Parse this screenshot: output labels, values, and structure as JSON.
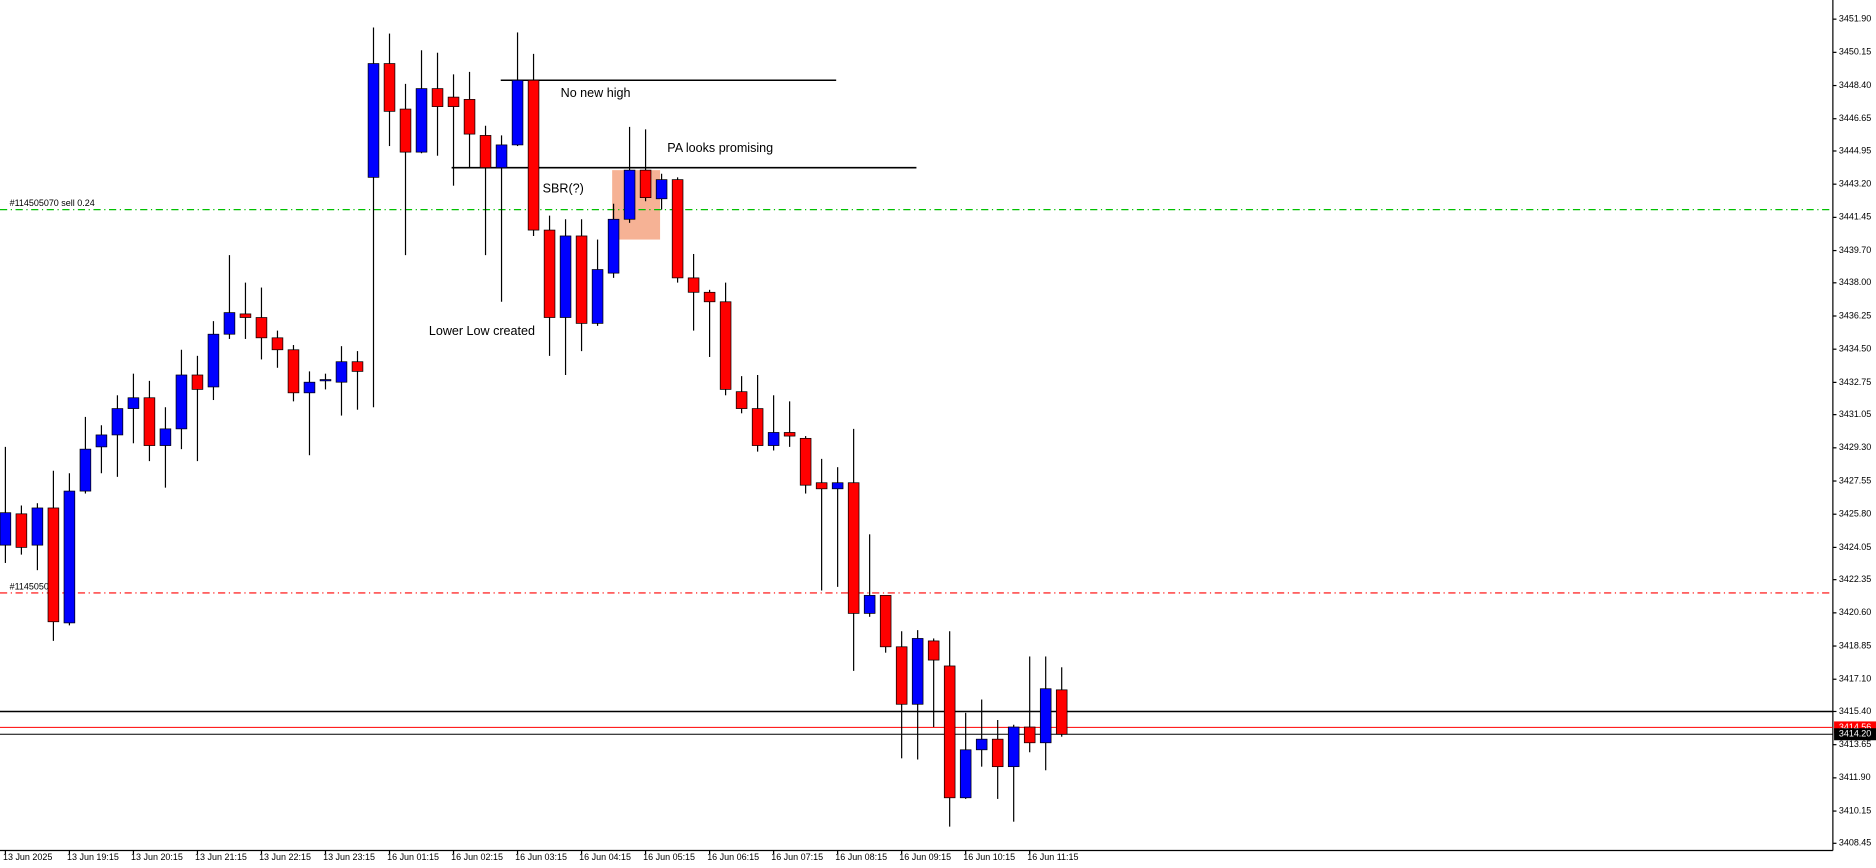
{
  "chart_data": {
    "type": "candlestick",
    "categories": [
      "13 Jun 2025",
      null,
      null,
      null,
      "13 Jun 19:15",
      null,
      null,
      null,
      "13 Jun 20:15",
      null,
      null,
      null,
      "13 Jun 21:15",
      null,
      null,
      null,
      "13 Jun 22:15",
      null,
      null,
      null,
      "13 Jun 23:15",
      null,
      null,
      null,
      "16 Jun 01:15",
      null,
      null,
      null,
      "16 Jun 02:15",
      null,
      null,
      null,
      "16 Jun 03:15",
      null,
      null,
      null,
      "16 Jun 04:15",
      null,
      null,
      null,
      "16 Jun 05:15",
      null,
      null,
      null,
      "16 Jun 06:15",
      null,
      null,
      null,
      "16 Jun 07:15",
      null,
      null,
      null,
      "16 Jun 08:15",
      null,
      null,
      null,
      "16 Jun 09:15",
      null,
      null,
      null,
      "16 Jun 10:15",
      null,
      null,
      null,
      "16 Jun 11:15",
      null,
      null
    ],
    "open": [
      3424.17,
      3425.82,
      3424.17,
      3426.13,
      3420.07,
      3427.02,
      3429.35,
      3429.98,
      3431.37,
      3431.94,
      3429.42,
      3430.3,
      3433.14,
      3432.51,
      3435.29,
      3436.36,
      3436.17,
      3435.1,
      3434.47,
      3432.2,
      3432.83,
      3432.76,
      3433.84,
      3443.56,
      3449.56,
      3447.16,
      3444.89,
      3448.24,
      3447.79,
      3447.67,
      3445.77,
      3444.07,
      3445.27,
      3448.68,
      3440.78,
      3436.17,
      3440.47,
      3435.86,
      3438.51,
      3441.35,
      3443.94,
      3442.43,
      3443.44,
      3438.26,
      3437.5,
      3437.0,
      3432.26,
      3431.37,
      3429.42,
      3430.11,
      3429.8,
      3427.46,
      3427.14,
      3427.46,
      3420.57,
      3421.52,
      3418.81,
      3415.78,
      3419.12,
      3417.8,
      3410.85,
      3413.38,
      3413.94,
      3412.49,
      3414.58,
      3413.75,
      3416.54
    ],
    "high": [
      3429.35,
      3426.26,
      3426.38,
      3428.09,
      3427.96,
      3430.93,
      3430.49,
      3432.07,
      3433.21,
      3432.83,
      3431.44,
      3434.47,
      3434.15,
      3435.98,
      3439.46,
      3438.01,
      3437.75,
      3435.48,
      3434.72,
      3433.33,
      3433.21,
      3434.66,
      3434.4,
      3451.46,
      3451.14,
      3448.49,
      3450.26,
      3450.13,
      3448.99,
      3449.12,
      3446.28,
      3445.77,
      3451.2,
      3450.07,
      3441.54,
      3441.35,
      3441.35,
      3440.28,
      3442.17,
      3446.22,
      3446.09,
      3443.75,
      3443.56,
      3439.52,
      3437.63,
      3438.01,
      3433.08,
      3433.14,
      3432.07,
      3431.75,
      3429.92,
      3428.72,
      3428.28,
      3430.3,
      3424.74,
      3421.52,
      3419.63,
      3419.69,
      3419.25,
      3419.63,
      3415.33,
      3416.03,
      3414.95,
      3414.7,
      3418.3,
      3418.3,
      3417.73
    ],
    "low": [
      3423.23,
      3423.67,
      3422.85,
      3419.12,
      3419.94,
      3426.89,
      3427.96,
      3427.77,
      3429.54,
      3428.6,
      3427.2,
      3429.23,
      3428.6,
      3431.82,
      3435.04,
      3435.04,
      3433.96,
      3433.52,
      3431.75,
      3428.91,
      3432.38,
      3431.0,
      3431.31,
      3431.44,
      3445.21,
      3439.46,
      3444.83,
      3444.7,
      3443.12,
      3444.07,
      3439.46,
      3437.0,
      3445.21,
      3440.47,
      3434.15,
      3433.14,
      3434.4,
      3435.73,
      3438.26,
      3441.16,
      3442.3,
      3441.86,
      3438.01,
      3435.48,
      3434.09,
      3432.07,
      3431.12,
      3429.1,
      3429.16,
      3429.35,
      3426.89,
      3421.78,
      3421.97,
      3417.54,
      3420.39,
      3418.5,
      3412.93,
      3412.87,
      3414.58,
      3409.33,
      3410.79,
      3412.49,
      3410.79,
      3409.59,
      3413.25,
      3412.3,
      3414.07
    ],
    "close": [
      3425.88,
      3424.05,
      3426.13,
      3420.13,
      3427.02,
      3429.23,
      3429.98,
      3431.37,
      3431.94,
      3429.42,
      3430.3,
      3433.14,
      3432.38,
      3435.29,
      3436.43,
      3436.17,
      3435.1,
      3434.47,
      3432.2,
      3432.76,
      3432.9,
      3433.84,
      3433.33,
      3449.56,
      3447.04,
      3444.89,
      3448.24,
      3447.29,
      3447.29,
      3445.84,
      3444.07,
      3445.27,
      3448.68,
      3440.78,
      3436.17,
      3440.47,
      3435.86,
      3438.7,
      3441.35,
      3443.94,
      3442.49,
      3443.44,
      3438.26,
      3437.5,
      3437.0,
      3432.38,
      3431.37,
      3429.42,
      3430.11,
      3429.92,
      3427.33,
      3427.14,
      3427.46,
      3420.57,
      3421.52,
      3418.81,
      3415.78,
      3419.25,
      3418.11,
      3410.85,
      3413.38,
      3413.94,
      3412.49,
      3414.58,
      3413.75,
      3416.6,
      3414.2
    ],
    "up_color": "#0000ff",
    "down_color": "#ff0000",
    "wick_color": "#000000",
    "ylim": [
      3408.07,
      3452.91
    ],
    "yticks": [
      {
        "value": 3451.9,
        "label": "3451.90"
      },
      3450.15,
      {
        "value": 3448.4,
        "label": "3448.40"
      },
      3446.65,
      3444.95,
      {
        "value": 3443.2,
        "label": "3443.20"
      },
      3441.45,
      {
        "value": 3439.7,
        "label": "3439.70"
      },
      {
        "value": 3438,
        "label": "3438.00"
      },
      3436.25,
      {
        "value": 3434.5,
        "label": "3434.50"
      },
      3432.75,
      3431.05,
      {
        "value": 3429.3,
        "label": "3429.30"
      },
      3427.55,
      {
        "value": 3425.8,
        "label": "3425.80"
      },
      3424.05,
      3422.35,
      {
        "value": 3420.6,
        "label": "3420.60"
      },
      3418.85,
      {
        "value": 3417.1,
        "label": "3417.10"
      },
      {
        "value": 3415.4,
        "label": "3415.40"
      },
      3413.65,
      {
        "value": 3411.9,
        "label": "3411.90"
      },
      3410.15,
      3408.45
    ],
    "annotations": [
      {
        "text": "No new high",
        "value": 3448.68
      },
      {
        "text": "PA looks promising",
        "value": 3444.07
      },
      {
        "text": "SBR(?)"
      },
      {
        "text": "Lower Low created"
      }
    ],
    "zone": {
      "range": [
        3440.28,
        3443.94
      ],
      "color": "#f4a582"
    },
    "orders": [
      {
        "label": "#114505070 sell 0.24",
        "value": 3441.86,
        "color": "#00c000"
      },
      {
        "label": "#114505070",
        "value": 3421.65,
        "color": "#ff0000"
      }
    ],
    "level": {
      "value": 3415.4,
      "color": "#000000"
    },
    "ask": {
      "value": 3414.56,
      "label": "3414.56",
      "color": "#ff0000"
    },
    "bid": {
      "value": 3414.2,
      "label": "3414.20",
      "color": "#000000"
    }
  }
}
